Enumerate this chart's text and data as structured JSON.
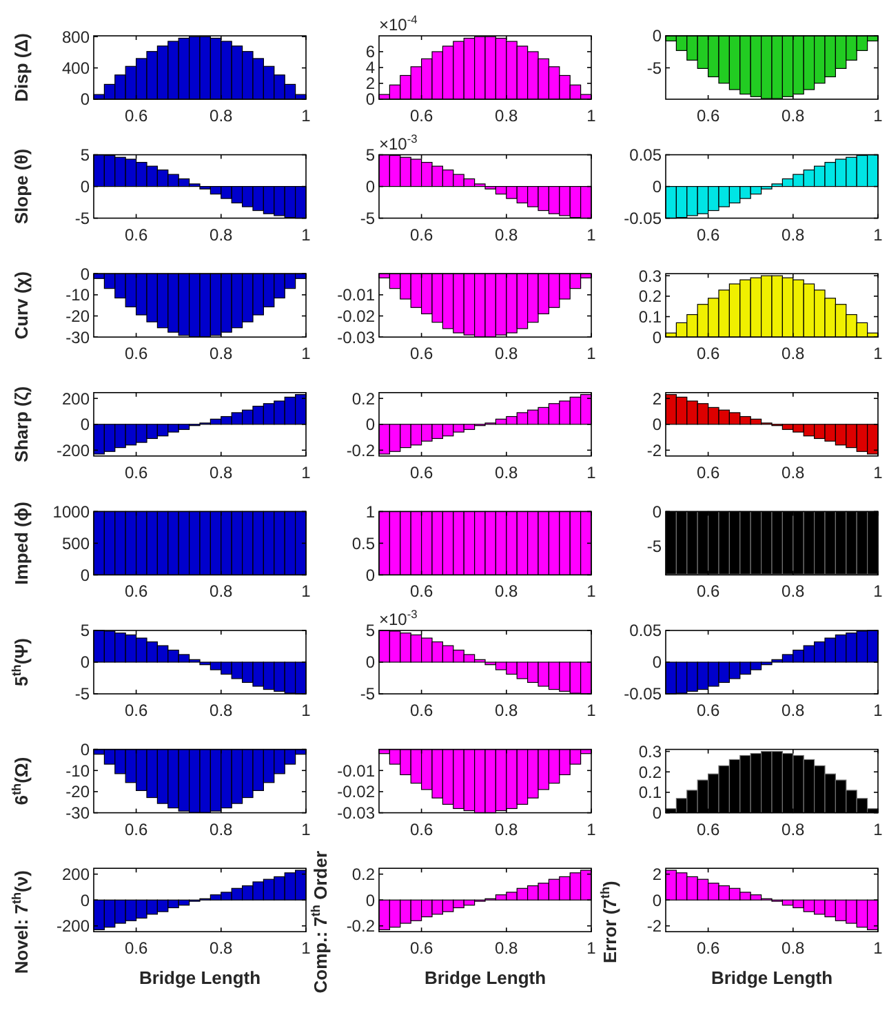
{
  "chart_data": [
    {
      "type": "bar",
      "ylabel": "Disp (Δ)",
      "color": "#0000cc",
      "xlim": [
        0.5,
        1
      ],
      "xticks": [
        0.6,
        0.8,
        1
      ],
      "ylim": [
        0,
        810
      ],
      "yticks": [
        0,
        400,
        800
      ],
      "x": [
        0.5125,
        0.5375,
        0.5625,
        0.5875,
        0.6125,
        0.6375,
        0.6625,
        0.6875,
        0.7125,
        0.7375,
        0.7625,
        0.7875,
        0.8125,
        0.8375,
        0.8625,
        0.8875,
        0.9125,
        0.9375,
        0.9625,
        0.9875
      ],
      "values": [
        60,
        190,
        310,
        420,
        520,
        610,
        680,
        740,
        780,
        800,
        800,
        780,
        740,
        680,
        610,
        520,
        420,
        310,
        190,
        60
      ]
    },
    {
      "type": "bar",
      "annotations": [
        "×10$^{-4}$"
      ],
      "color": "#ff00ff",
      "xlim": [
        0.5,
        1
      ],
      "xticks": [
        0.6,
        0.8,
        1
      ],
      "ylim": [
        0,
        8
      ],
      "yticks": [
        0,
        2,
        4,
        6
      ],
      "x": [
        0.5125,
        0.5375,
        0.5625,
        0.5875,
        0.6125,
        0.6375,
        0.6625,
        0.6875,
        0.7125,
        0.7375,
        0.7625,
        0.7875,
        0.8125,
        0.8375,
        0.8625,
        0.8875,
        0.9125,
        0.9375,
        0.9625,
        0.9875
      ],
      "values": [
        0.6,
        1.8,
        3.0,
        4.1,
        5.1,
        6.0,
        6.7,
        7.3,
        7.7,
        7.9,
        7.9,
        7.7,
        7.3,
        6.7,
        6.0,
        5.1,
        4.1,
        3.0,
        1.8,
        0.6
      ]
    },
    {
      "type": "bar",
      "color": "#22cc22",
      "xlim": [
        0.5,
        1
      ],
      "xticks": [
        0.6,
        0.8,
        1
      ],
      "ylim": [
        -9.9,
        0
      ],
      "yticks": [
        -5,
        0
      ],
      "x": [
        0.5125,
        0.5375,
        0.5625,
        0.5875,
        0.6125,
        0.6375,
        0.6625,
        0.6875,
        0.7125,
        0.7375,
        0.7625,
        0.7875,
        0.8125,
        0.8375,
        0.8625,
        0.8875,
        0.9125,
        0.9375,
        0.9625,
        0.9875
      ],
      "values": [
        -0.8,
        -2.3,
        -3.8,
        -5.1,
        -6.4,
        -7.4,
        -8.4,
        -9.1,
        -9.5,
        -9.8,
        -9.8,
        -9.5,
        -9.1,
        -8.4,
        -7.4,
        -6.4,
        -5.1,
        -3.8,
        -2.3,
        -0.8
      ]
    },
    {
      "type": "bar",
      "ylabel": "Slope (θ)",
      "color": "#0000cc",
      "xlim": [
        0.5,
        1
      ],
      "xticks": [
        0.6,
        0.8,
        1
      ],
      "ylim": [
        -5,
        5
      ],
      "yticks": [
        -5,
        0,
        5
      ],
      "x": [
        0.5125,
        0.5375,
        0.5625,
        0.5875,
        0.6125,
        0.6375,
        0.6625,
        0.6875,
        0.7125,
        0.7375,
        0.7625,
        0.7875,
        0.8125,
        0.8375,
        0.8625,
        0.8875,
        0.9125,
        0.9375,
        0.9625,
        0.9875
      ],
      "values": [
        5.0,
        4.9,
        4.6,
        4.3,
        3.8,
        3.2,
        2.6,
        1.9,
        1.2,
        0.4,
        -0.4,
        -1.2,
        -1.9,
        -2.6,
        -3.2,
        -3.8,
        -4.3,
        -4.6,
        -4.9,
        -5.0
      ]
    },
    {
      "type": "bar",
      "annotations": [
        "×10$^{-3}$"
      ],
      "color": "#ff00ff",
      "xlim": [
        0.5,
        1
      ],
      "xticks": [
        0.6,
        0.8,
        1
      ],
      "ylim": [
        -5,
        5
      ],
      "yticks": [
        -5,
        0,
        5
      ],
      "x": [
        0.5125,
        0.5375,
        0.5625,
        0.5875,
        0.6125,
        0.6375,
        0.6625,
        0.6875,
        0.7125,
        0.7375,
        0.7625,
        0.7875,
        0.8125,
        0.8375,
        0.8625,
        0.8875,
        0.9125,
        0.9375,
        0.9625,
        0.9875
      ],
      "values": [
        5.0,
        4.9,
        4.6,
        4.3,
        3.8,
        3.2,
        2.6,
        1.9,
        1.2,
        0.4,
        -0.4,
        -1.2,
        -1.9,
        -2.6,
        -3.2,
        -3.8,
        -4.3,
        -4.6,
        -4.9,
        -5.0
      ]
    },
    {
      "type": "bar",
      "color": "#00e5e5",
      "xlim": [
        0.5,
        1
      ],
      "xticks": [
        0.6,
        0.8,
        1
      ],
      "ylim": [
        -0.05,
        0.05
      ],
      "yticks": [
        -0.05,
        0,
        0.05
      ],
      "x": [
        0.5125,
        0.5375,
        0.5625,
        0.5875,
        0.6125,
        0.6375,
        0.6625,
        0.6875,
        0.7125,
        0.7375,
        0.7625,
        0.7875,
        0.8125,
        0.8375,
        0.8625,
        0.8875,
        0.9125,
        0.9375,
        0.9625,
        0.9875
      ],
      "values": [
        -0.05,
        -0.049,
        -0.046,
        -0.043,
        -0.038,
        -0.032,
        -0.026,
        -0.019,
        -0.012,
        -0.004,
        0.004,
        0.012,
        0.019,
        0.026,
        0.032,
        0.038,
        0.043,
        0.046,
        0.049,
        0.05
      ]
    },
    {
      "type": "bar",
      "ylabel": "Curv (χ)",
      "color": "#0000cc",
      "xlim": [
        0.5,
        1
      ],
      "xticks": [
        0.6,
        0.8,
        1
      ],
      "ylim": [
        -30,
        0
      ],
      "yticks": [
        -30,
        -20,
        -10,
        0
      ],
      "x": [
        0.5125,
        0.5375,
        0.5625,
        0.5875,
        0.6125,
        0.6375,
        0.6625,
        0.6875,
        0.7125,
        0.7375,
        0.7625,
        0.7875,
        0.8125,
        0.8375,
        0.8625,
        0.8875,
        0.9125,
        0.9375,
        0.9625,
        0.9875
      ],
      "values": [
        -2.3,
        -7.0,
        -11.5,
        -15.7,
        -19.5,
        -22.8,
        -25.6,
        -27.7,
        -29.2,
        -29.9,
        -29.9,
        -29.2,
        -27.7,
        -25.6,
        -22.8,
        -19.5,
        -15.7,
        -11.5,
        -7.0,
        -2.3
      ]
    },
    {
      "type": "bar",
      "color": "#ff00ff",
      "xlim": [
        0.5,
        1
      ],
      "xticks": [
        0.6,
        0.8,
        1
      ],
      "ylim": [
        -0.03,
        0
      ],
      "yticks": [
        -0.03,
        -0.02,
        -0.01
      ],
      "x": [
        0.5125,
        0.5375,
        0.5625,
        0.5875,
        0.6125,
        0.6375,
        0.6625,
        0.6875,
        0.7125,
        0.7375,
        0.7625,
        0.7875,
        0.8125,
        0.8375,
        0.8625,
        0.8875,
        0.9125,
        0.9375,
        0.9625,
        0.9875
      ],
      "values": [
        -0.002,
        -0.007,
        -0.012,
        -0.016,
        -0.019,
        -0.023,
        -0.026,
        -0.028,
        -0.029,
        -0.03,
        -0.03,
        -0.029,
        -0.028,
        -0.026,
        -0.023,
        -0.019,
        -0.016,
        -0.012,
        -0.007,
        -0.002
      ]
    },
    {
      "type": "bar",
      "color": "#f0f000",
      "xlim": [
        0.5,
        1
      ],
      "xticks": [
        0.6,
        0.8,
        1
      ],
      "ylim": [
        0,
        0.31
      ],
      "yticks": [
        0,
        0.1,
        0.2,
        0.3
      ],
      "x": [
        0.5125,
        0.5375,
        0.5625,
        0.5875,
        0.6125,
        0.6375,
        0.6625,
        0.6875,
        0.7125,
        0.7375,
        0.7625,
        0.7875,
        0.8125,
        0.8375,
        0.8625,
        0.8875,
        0.9125,
        0.9375,
        0.9625,
        0.9875
      ],
      "values": [
        0.02,
        0.07,
        0.11,
        0.16,
        0.19,
        0.23,
        0.26,
        0.28,
        0.29,
        0.3,
        0.3,
        0.29,
        0.28,
        0.26,
        0.23,
        0.19,
        0.16,
        0.11,
        0.07,
        0.02
      ]
    },
    {
      "type": "bar",
      "ylabel": "Sharp (ζ)",
      "color": "#0000cc",
      "xlim": [
        0.5,
        1
      ],
      "xticks": [
        0.6,
        0.8,
        1
      ],
      "ylim": [
        -245,
        245
      ],
      "yticks": [
        -200,
        0,
        200
      ],
      "x": [
        0.5125,
        0.5375,
        0.5625,
        0.5875,
        0.6125,
        0.6375,
        0.6625,
        0.6875,
        0.7125,
        0.7375,
        0.7625,
        0.7875,
        0.8125,
        0.8375,
        0.8625,
        0.8875,
        0.9125,
        0.9375,
        0.9625,
        0.9875
      ],
      "values": [
        -230,
        -210,
        -180,
        -160,
        -140,
        -110,
        -90,
        -60,
        -40,
        -10,
        10,
        40,
        60,
        90,
        110,
        140,
        160,
        180,
        210,
        230
      ]
    },
    {
      "type": "bar",
      "color": "#ff00ff",
      "xlim": [
        0.5,
        1
      ],
      "xticks": [
        0.6,
        0.8,
        1
      ],
      "ylim": [
        -0.245,
        0.245
      ],
      "yticks": [
        -0.2,
        0,
        0.2
      ],
      "x": [
        0.5125,
        0.5375,
        0.5625,
        0.5875,
        0.6125,
        0.6375,
        0.6625,
        0.6875,
        0.7125,
        0.7375,
        0.7625,
        0.7875,
        0.8125,
        0.8375,
        0.8625,
        0.8875,
        0.9125,
        0.9375,
        0.9625,
        0.9875
      ],
      "values": [
        -0.23,
        -0.21,
        -0.18,
        -0.16,
        -0.13,
        -0.11,
        -0.09,
        -0.06,
        -0.04,
        -0.01,
        0.01,
        0.04,
        0.06,
        0.09,
        0.11,
        0.13,
        0.16,
        0.18,
        0.21,
        0.23
      ]
    },
    {
      "type": "bar",
      "color": "#dd0000",
      "xlim": [
        0.5,
        1
      ],
      "xticks": [
        0.6,
        0.8,
        1
      ],
      "ylim": [
        -2.45,
        2.45
      ],
      "yticks": [
        -2,
        0,
        2
      ],
      "x": [
        0.5125,
        0.5375,
        0.5625,
        0.5875,
        0.6125,
        0.6375,
        0.6625,
        0.6875,
        0.7125,
        0.7375,
        0.7625,
        0.7875,
        0.8125,
        0.8375,
        0.8625,
        0.8875,
        0.9125,
        0.9375,
        0.9625,
        0.9875
      ],
      "values": [
        2.3,
        2.1,
        1.8,
        1.6,
        1.3,
        1.1,
        0.9,
        0.6,
        0.4,
        0.1,
        -0.1,
        -0.4,
        -0.6,
        -0.9,
        -1.1,
        -1.3,
        -1.6,
        -1.8,
        -2.1,
        -2.3
      ]
    },
    {
      "type": "bar",
      "ylabel": "Imped (ϕ)",
      "color": "#0000cc",
      "xlim": [
        0.5,
        1
      ],
      "xticks": [
        0.6,
        0.8,
        1
      ],
      "ylim": [
        0,
        1000
      ],
      "yticks": [
        0,
        500,
        1000
      ],
      "x": [
        0.5125,
        0.5375,
        0.5625,
        0.5875,
        0.6125,
        0.6375,
        0.6625,
        0.6875,
        0.7125,
        0.7375,
        0.7625,
        0.7875,
        0.8125,
        0.8375,
        0.8625,
        0.8875,
        0.9125,
        0.9375,
        0.9625,
        0.9875
      ],
      "values": [
        1000,
        1000,
        1000,
        1000,
        1000,
        1000,
        1000,
        1000,
        1000,
        1000,
        1000,
        1000,
        1000,
        1000,
        1000,
        1000,
        1000,
        1000,
        1000,
        1000
      ]
    },
    {
      "type": "bar",
      "color": "#ff00ff",
      "xlim": [
        0.5,
        1
      ],
      "xticks": [
        0.6,
        0.8,
        1
      ],
      "ylim": [
        0,
        1
      ],
      "yticks": [
        0,
        0.5,
        1
      ],
      "x": [
        0.5125,
        0.5375,
        0.5625,
        0.5875,
        0.6125,
        0.6375,
        0.6625,
        0.6875,
        0.7125,
        0.7375,
        0.7625,
        0.7875,
        0.8125,
        0.8375,
        0.8625,
        0.8875,
        0.9125,
        0.9375,
        0.9625,
        0.9875
      ],
      "values": [
        1,
        1,
        1,
        1,
        1,
        1,
        1,
        1,
        1,
        1,
        1,
        1,
        1,
        1,
        1,
        1,
        1,
        1,
        1,
        1
      ]
    },
    {
      "type": "bar",
      "color": "#000000",
      "xlim": [
        0.5,
        1
      ],
      "xticks": [
        0.6,
        0.8,
        1
      ],
      "ylim": [
        -9.1,
        0
      ],
      "yticks": [
        -5,
        0
      ],
      "x": [
        0.5125,
        0.5375,
        0.5625,
        0.5875,
        0.6125,
        0.6375,
        0.6625,
        0.6875,
        0.7125,
        0.7375,
        0.7625,
        0.7875,
        0.8125,
        0.8375,
        0.8625,
        0.8875,
        0.9125,
        0.9375,
        0.9625,
        0.9875
      ],
      "values": [
        -9,
        -9,
        -9,
        -9,
        -9,
        -9,
        -9,
        -9,
        -9,
        -9,
        -9,
        -9,
        -9,
        -9,
        -9,
        -9,
        -9,
        -9,
        -9,
        -9
      ]
    },
    {
      "type": "bar",
      "ylabel": "5$^{th}$(Ψ)",
      "color": "#0000cc",
      "xlim": [
        0.5,
        1
      ],
      "xticks": [
        0.6,
        0.8,
        1
      ],
      "ylim": [
        -5,
        5
      ],
      "yticks": [
        -5,
        0,
        5
      ],
      "x": [
        0.5125,
        0.5375,
        0.5625,
        0.5875,
        0.6125,
        0.6375,
        0.6625,
        0.6875,
        0.7125,
        0.7375,
        0.7625,
        0.7875,
        0.8125,
        0.8375,
        0.8625,
        0.8875,
        0.9125,
        0.9375,
        0.9625,
        0.9875
      ],
      "values": [
        5.0,
        4.9,
        4.6,
        4.3,
        3.8,
        3.2,
        2.6,
        1.9,
        1.2,
        0.4,
        -0.4,
        -1.2,
        -1.9,
        -2.6,
        -3.2,
        -3.8,
        -4.3,
        -4.6,
        -4.9,
        -5.0
      ]
    },
    {
      "type": "bar",
      "annotations": [
        "×10$^{-3}$"
      ],
      "color": "#ff00ff",
      "xlim": [
        0.5,
        1
      ],
      "xticks": [
        0.6,
        0.8,
        1
      ],
      "ylim": [
        -5,
        5
      ],
      "yticks": [
        -5,
        0,
        5
      ],
      "x": [
        0.5125,
        0.5375,
        0.5625,
        0.5875,
        0.6125,
        0.6375,
        0.6625,
        0.6875,
        0.7125,
        0.7375,
        0.7625,
        0.7875,
        0.8125,
        0.8375,
        0.8625,
        0.8875,
        0.9125,
        0.9375,
        0.9625,
        0.9875
      ],
      "values": [
        5.0,
        4.9,
        4.6,
        4.3,
        3.8,
        3.2,
        2.6,
        1.9,
        1.2,
        0.4,
        -0.4,
        -1.2,
        -1.9,
        -2.6,
        -3.2,
        -3.8,
        -4.3,
        -4.6,
        -4.9,
        -5.0
      ]
    },
    {
      "type": "bar",
      "color": "#0000cc",
      "xlim": [
        0.5,
        1
      ],
      "xticks": [
        0.6,
        0.8,
        1
      ],
      "ylim": [
        -0.05,
        0.05
      ],
      "yticks": [
        -0.05,
        0,
        0.05
      ],
      "x": [
        0.5125,
        0.5375,
        0.5625,
        0.5875,
        0.6125,
        0.6375,
        0.6625,
        0.6875,
        0.7125,
        0.7375,
        0.7625,
        0.7875,
        0.8125,
        0.8375,
        0.8625,
        0.8875,
        0.9125,
        0.9375,
        0.9625,
        0.9875
      ],
      "values": [
        -0.05,
        -0.049,
        -0.046,
        -0.043,
        -0.038,
        -0.032,
        -0.026,
        -0.019,
        -0.012,
        -0.004,
        0.004,
        0.012,
        0.019,
        0.026,
        0.032,
        0.038,
        0.043,
        0.046,
        0.049,
        0.05
      ]
    },
    {
      "type": "bar",
      "ylabel": "6$^{th}$(Ω)",
      "color": "#0000cc",
      "xlim": [
        0.5,
        1
      ],
      "xticks": [
        0.6,
        0.8,
        1
      ],
      "ylim": [
        -30,
        0
      ],
      "yticks": [
        -30,
        -20,
        -10,
        0
      ],
      "x": [
        0.5125,
        0.5375,
        0.5625,
        0.5875,
        0.6125,
        0.6375,
        0.6625,
        0.6875,
        0.7125,
        0.7375,
        0.7625,
        0.7875,
        0.8125,
        0.8375,
        0.8625,
        0.8875,
        0.9125,
        0.9375,
        0.9625,
        0.9875
      ],
      "values": [
        -2.3,
        -7.0,
        -11.5,
        -15.7,
        -19.5,
        -22.8,
        -25.6,
        -27.7,
        -29.2,
        -29.9,
        -29.9,
        -29.2,
        -27.7,
        -25.6,
        -22.8,
        -19.5,
        -15.7,
        -11.5,
        -7.0,
        -2.3
      ]
    },
    {
      "type": "bar",
      "color": "#ff00ff",
      "xlim": [
        0.5,
        1
      ],
      "xticks": [
        0.6,
        0.8,
        1
      ],
      "ylim": [
        -0.03,
        0
      ],
      "yticks": [
        -0.03,
        -0.02,
        -0.01
      ],
      "x": [
        0.5125,
        0.5375,
        0.5625,
        0.5875,
        0.6125,
        0.6375,
        0.6625,
        0.6875,
        0.7125,
        0.7375,
        0.7625,
        0.7875,
        0.8125,
        0.8375,
        0.8625,
        0.8875,
        0.9125,
        0.9375,
        0.9625,
        0.9875
      ],
      "values": [
        -0.002,
        -0.007,
        -0.012,
        -0.016,
        -0.019,
        -0.023,
        -0.026,
        -0.028,
        -0.029,
        -0.03,
        -0.03,
        -0.029,
        -0.028,
        -0.026,
        -0.023,
        -0.019,
        -0.016,
        -0.012,
        -0.007,
        -0.002
      ]
    },
    {
      "type": "bar",
      "color": "#000000",
      "xlim": [
        0.5,
        1
      ],
      "xticks": [
        0.6,
        0.8,
        1
      ],
      "ylim": [
        0,
        0.31
      ],
      "yticks": [
        0,
        0.1,
        0.2,
        0.3
      ],
      "x": [
        0.5125,
        0.5375,
        0.5625,
        0.5875,
        0.6125,
        0.6375,
        0.6625,
        0.6875,
        0.7125,
        0.7375,
        0.7625,
        0.7875,
        0.8125,
        0.8375,
        0.8625,
        0.8875,
        0.9125,
        0.9375,
        0.9625,
        0.9875
      ],
      "values": [
        0.02,
        0.07,
        0.11,
        0.16,
        0.19,
        0.23,
        0.26,
        0.28,
        0.29,
        0.3,
        0.3,
        0.29,
        0.28,
        0.26,
        0.23,
        0.19,
        0.16,
        0.11,
        0.07,
        0.02
      ]
    },
    {
      "type": "bar",
      "ylabel": "Novel: 7$^{th}$(ν)",
      "xlabel": "Bridge Length",
      "color": "#0000cc",
      "xlim": [
        0.5,
        1
      ],
      "xticks": [
        0.6,
        0.8,
        1
      ],
      "ylim": [
        -245,
        245
      ],
      "yticks": [
        -200,
        0,
        200
      ],
      "x": [
        0.5125,
        0.5375,
        0.5625,
        0.5875,
        0.6125,
        0.6375,
        0.6625,
        0.6875,
        0.7125,
        0.7375,
        0.7625,
        0.7875,
        0.8125,
        0.8375,
        0.8625,
        0.8875,
        0.9125,
        0.9375,
        0.9625,
        0.9875
      ],
      "values": [
        -230,
        -210,
        -180,
        -160,
        -140,
        -110,
        -90,
        -60,
        -40,
        -10,
        10,
        40,
        60,
        90,
        110,
        140,
        160,
        180,
        210,
        230
      ]
    },
    {
      "type": "bar",
      "ylabel": "Comp.: 7$^{th}$ Order",
      "xlabel": "Bridge Length",
      "color": "#ff00ff",
      "xlim": [
        0.5,
        1
      ],
      "xticks": [
        0.6,
        0.8,
        1
      ],
      "ylim": [
        -0.245,
        0.245
      ],
      "yticks": [
        -0.2,
        0,
        0.2
      ],
      "x": [
        0.5125,
        0.5375,
        0.5625,
        0.5875,
        0.6125,
        0.6375,
        0.6625,
        0.6875,
        0.7125,
        0.7375,
        0.7625,
        0.7875,
        0.8125,
        0.8375,
        0.8625,
        0.8875,
        0.9125,
        0.9375,
        0.9625,
        0.9875
      ],
      "values": [
        -0.23,
        -0.21,
        -0.18,
        -0.16,
        -0.13,
        -0.11,
        -0.09,
        -0.06,
        -0.04,
        -0.01,
        0.01,
        0.04,
        0.06,
        0.09,
        0.11,
        0.13,
        0.16,
        0.18,
        0.21,
        0.23
      ]
    },
    {
      "type": "bar",
      "ylabel": "Error (7$^{th}$)",
      "xlabel": "Bridge Length",
      "color": "#ff00ff",
      "xlim": [
        0.5,
        1
      ],
      "xticks": [
        0.6,
        0.8,
        1
      ],
      "ylim": [
        -2.45,
        2.45
      ],
      "yticks": [
        -2,
        0,
        2
      ],
      "x": [
        0.5125,
        0.5375,
        0.5625,
        0.5875,
        0.6125,
        0.6375,
        0.6625,
        0.6875,
        0.7125,
        0.7375,
        0.7625,
        0.7875,
        0.8125,
        0.8375,
        0.8625,
        0.8875,
        0.9125,
        0.9375,
        0.9625,
        0.9875
      ],
      "values": [
        2.3,
        2.1,
        1.8,
        1.6,
        1.3,
        1.1,
        0.9,
        0.6,
        0.4,
        0.1,
        -0.1,
        -0.4,
        -0.6,
        -0.9,
        -1.1,
        -1.3,
        -1.6,
        -1.8,
        -2.1,
        -2.3
      ]
    }
  ]
}
